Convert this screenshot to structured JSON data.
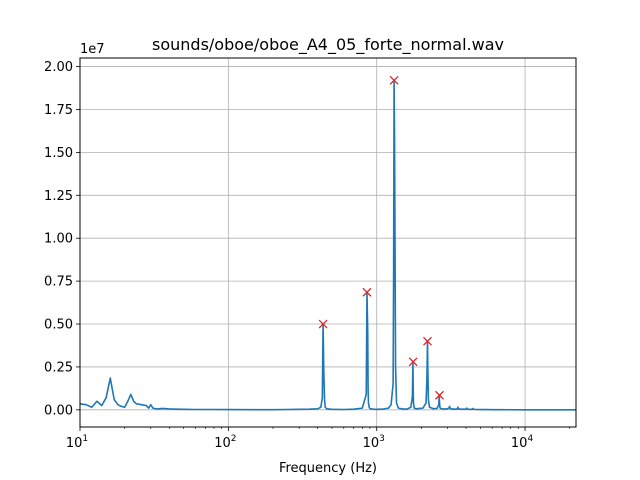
{
  "chart_data": {
    "type": "line",
    "title": "sounds/oboe/oboe_A4_05_forte_normal.wav",
    "xlabel": "Frequency (Hz)",
    "ylabel": "",
    "x_scale": "log",
    "xlim": [
      10,
      22050
    ],
    "ylim": [
      -1000000,
      20500000
    ],
    "y_offset_label": "1e7",
    "grid": true,
    "x_ticks": [
      {
        "value": 10,
        "base": "10",
        "exp": "1"
      },
      {
        "value": 100,
        "base": "10",
        "exp": "2"
      },
      {
        "value": 1000,
        "base": "10",
        "exp": "3"
      },
      {
        "value": 10000,
        "base": "10",
        "exp": "4"
      }
    ],
    "y_ticks": [
      {
        "value": 0,
        "label": "0.00"
      },
      {
        "value": 2500000,
        "label": "0.25"
      },
      {
        "value": 5000000,
        "label": "0.50"
      },
      {
        "value": 7500000,
        "label": "0.75"
      },
      {
        "value": 10000000,
        "label": "1.00"
      },
      {
        "value": 12500000,
        "label": "1.25"
      },
      {
        "value": 15000000,
        "label": "1.50"
      },
      {
        "value": 17500000,
        "label": "1.75"
      },
      {
        "value": 20000000,
        "label": "2.00"
      }
    ],
    "series": [
      {
        "color": "#1f77b4",
        "x": [
          10,
          11,
          12,
          13,
          14,
          15,
          16,
          17,
          18,
          19,
          20,
          21,
          22,
          23,
          24,
          26,
          28,
          29,
          30,
          31,
          33,
          36,
          40,
          45,
          50,
          60,
          80,
          100,
          150,
          200,
          250,
          300,
          350,
          400,
          420,
          430,
          435,
          440,
          445,
          450,
          460,
          500,
          600,
          700,
          800,
          850,
          860,
          870,
          875,
          880,
          890,
          900,
          950,
          1000,
          1100,
          1200,
          1250,
          1290,
          1300,
          1310,
          1320,
          1330,
          1340,
          1360,
          1400,
          1500,
          1600,
          1700,
          1740,
          1755,
          1760,
          1770,
          1790,
          1850,
          1950,
          2050,
          2150,
          2180,
          2200,
          2210,
          2230,
          2270,
          2400,
          2550,
          2620,
          2640,
          2650,
          2670,
          2720,
          2850,
          3000,
          3080,
          3100,
          3130,
          3200,
          3400,
          3500,
          3530,
          3560,
          3700,
          3900,
          4000,
          4050,
          4100,
          4300,
          4400,
          4450,
          4500,
          4700,
          5000,
          5500,
          6000,
          7000,
          8000,
          10000,
          12000,
          15000,
          16500,
          18000,
          20000,
          22050
        ],
        "y": [
          350000,
          300000,
          150000,
          500000,
          250000,
          700000,
          1850000,
          600000,
          300000,
          200000,
          150000,
          500000,
          900000,
          500000,
          350000,
          300000,
          250000,
          100000,
          300000,
          100000,
          50000,
          80000,
          50000,
          40000,
          30000,
          20000,
          20000,
          15000,
          10000,
          10000,
          20000,
          30000,
          40000,
          60000,
          150000,
          700000,
          5000000,
          2200000,
          600000,
          150000,
          60000,
          30000,
          20000,
          40000,
          100000,
          900000,
          6800000,
          4500000,
          1200000,
          400000,
          150000,
          70000,
          40000,
          30000,
          40000,
          100000,
          300000,
          1500000,
          8000000,
          19200000,
          15500000,
          9000000,
          2500000,
          400000,
          100000,
          50000,
          40000,
          150000,
          800000,
          2800000,
          1500000,
          400000,
          100000,
          60000,
          80000,
          100000,
          400000,
          1800000,
          4000000,
          2500000,
          600000,
          150000,
          70000,
          80000,
          300000,
          850000,
          400000,
          120000,
          60000,
          50000,
          60000,
          120000,
          200000,
          80000,
          50000,
          40000,
          60000,
          150000,
          50000,
          40000,
          40000,
          40000,
          100000,
          40000,
          30000,
          30000,
          80000,
          30000,
          20000,
          15000,
          15000,
          10000,
          8000,
          5000,
          4000,
          3000,
          2000,
          3000,
          2000,
          1000,
          1000
        ]
      }
    ],
    "peaks": {
      "marker": "x",
      "color": "#d62728",
      "x": [
        435,
        860,
        1310,
        1760,
        2200,
        2650
      ],
      "y": [
        5000000,
        6850000,
        19200000,
        2800000,
        4000000,
        850000
      ]
    }
  }
}
